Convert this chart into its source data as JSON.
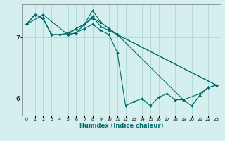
{
  "xlabel": "Humidex (Indice chaleur)",
  "background_color": "#d4efee",
  "grid_color": "#aed8d6",
  "line_color": "#006b6b",
  "xlim": [
    -0.5,
    23.5
  ],
  "ylim": [
    5.72,
    7.55
  ],
  "yticks": [
    6,
    7
  ],
  "xticks": [
    0,
    1,
    2,
    3,
    4,
    5,
    6,
    7,
    8,
    9,
    10,
    11,
    12,
    13,
    14,
    15,
    16,
    17,
    18,
    19,
    20,
    21,
    22,
    23
  ],
  "series": [
    {
      "x": [
        0,
        1,
        2,
        3,
        5,
        6,
        7,
        8,
        9,
        10,
        11,
        12,
        13,
        14,
        15,
        16,
        17,
        18,
        19,
        20,
        21,
        22,
        23
      ],
      "y": [
        7.22,
        7.38,
        7.32,
        7.05,
        7.05,
        7.08,
        7.15,
        7.22,
        7.12,
        7.05,
        6.75,
        5.88,
        5.95,
        6.0,
        5.88,
        6.02,
        6.08,
        5.98,
        5.98,
        5.88,
        6.05,
        6.18,
        6.22
      ]
    },
    {
      "x": [
        0,
        1,
        2,
        3,
        4,
        5,
        6,
        7,
        8,
        9,
        10,
        11,
        19,
        21,
        22,
        23
      ],
      "y": [
        7.22,
        7.38,
        7.32,
        7.05,
        7.05,
        7.08,
        7.15,
        7.22,
        7.32,
        7.25,
        7.15,
        7.05,
        5.98,
        6.08,
        6.18,
        6.22
      ]
    },
    {
      "x": [
        0,
        1,
        2,
        3,
        5,
        6,
        7,
        8,
        9,
        10,
        11,
        23
      ],
      "y": [
        7.22,
        7.38,
        7.32,
        7.05,
        7.05,
        7.15,
        7.22,
        7.45,
        7.25,
        7.15,
        7.05,
        6.22
      ]
    },
    {
      "x": [
        0,
        2,
        5,
        6,
        8,
        9,
        10,
        11,
        23
      ],
      "y": [
        7.22,
        7.38,
        7.05,
        7.08,
        7.35,
        7.18,
        7.12,
        7.05,
        6.22
      ]
    }
  ]
}
